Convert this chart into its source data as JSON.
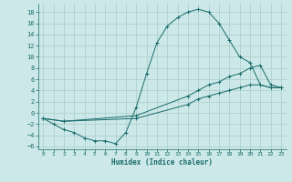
{
  "xlabel": "Humidex (Indice chaleur)",
  "bg_color": "#cce8e8",
  "line_color": "#1a6b6b",
  "grid_color": "#aacccc",
  "xlim": [
    -0.5,
    23.5
  ],
  "ylim": [
    -6.5,
    19.5
  ],
  "xticks": [
    0,
    1,
    2,
    3,
    4,
    5,
    6,
    7,
    8,
    9,
    10,
    11,
    12,
    13,
    14,
    15,
    16,
    17,
    18,
    19,
    20,
    21,
    22,
    23
  ],
  "yticks": [
    -6,
    -4,
    -2,
    0,
    2,
    4,
    6,
    8,
    10,
    12,
    14,
    16,
    18
  ],
  "line1_x": [
    0,
    1,
    2,
    3,
    4,
    5,
    6,
    7,
    8,
    9,
    10,
    11,
    12,
    13,
    14,
    15,
    16,
    17,
    18,
    19,
    20,
    21,
    22,
    23
  ],
  "line1_y": [
    -1,
    -2,
    -3,
    -3.5,
    -4.5,
    -5,
    -5,
    -5.5,
    -3.5,
    1,
    7,
    12.5,
    15.5,
    17,
    18,
    18.5,
    18,
    16,
    13,
    10,
    9,
    5,
    4.5,
    4.5
  ],
  "line2_x": [
    0,
    2,
    9,
    14,
    15,
    16,
    17,
    18,
    19,
    20,
    21,
    22,
    23
  ],
  "line2_y": [
    -1,
    -1.5,
    -0.5,
    3,
    4,
    5,
    5.5,
    6.5,
    7,
    8,
    8.5,
    5,
    4.5
  ],
  "line3_x": [
    0,
    2,
    9,
    14,
    15,
    16,
    17,
    18,
    19,
    20,
    21,
    22,
    23
  ],
  "line3_y": [
    -1,
    -1.5,
    -1,
    1.5,
    2.5,
    3,
    3.5,
    4,
    4.5,
    5,
    5,
    4.5,
    4.5
  ]
}
